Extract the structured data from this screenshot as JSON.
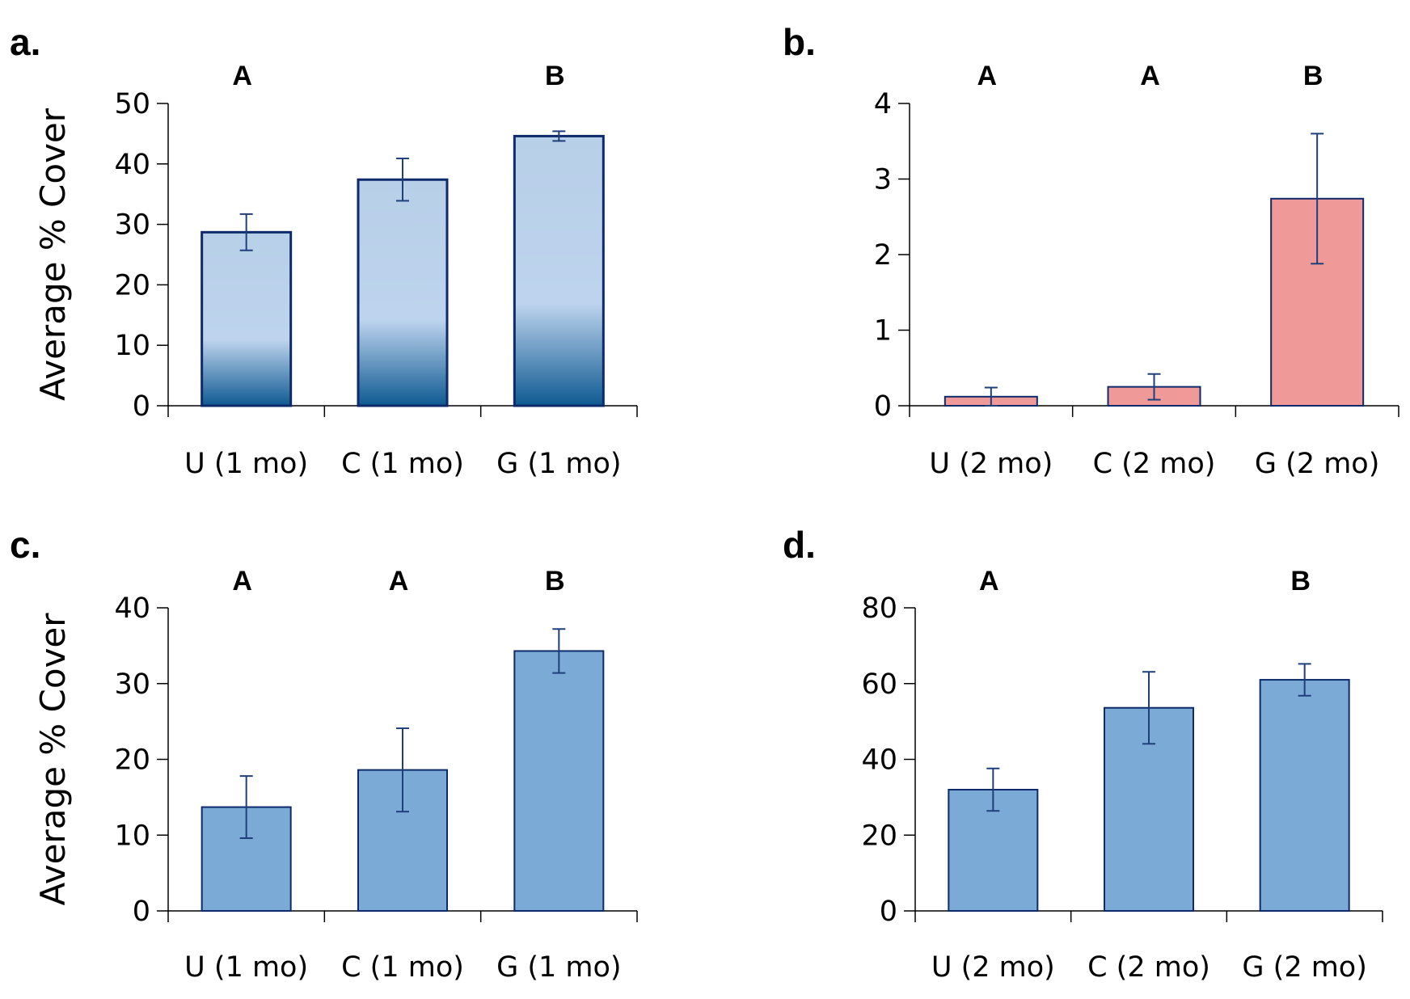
{
  "colors": {
    "gradient_top": "#b8cfe8",
    "gradient_mid": "#bed4ee",
    "gradient_bottom": "#0f5a92",
    "pink": "#ef9a98",
    "blue": "#7baad6",
    "edge": "#0d2a6b",
    "error": "#1f3f7a"
  },
  "chart_data": [
    {
      "id": "a",
      "panel_label": "a.",
      "type": "bar",
      "fill": "gradient",
      "ylabel": "Average % Cover",
      "categories": [
        "U (1 mo)",
        "C (1 mo)",
        "G (1 mo)"
      ],
      "values": [
        28.7,
        37.4,
        44.6
      ],
      "errors": [
        3.0,
        3.5,
        0.8
      ],
      "significance": [
        "A",
        "",
        "B"
      ],
      "ylim": [
        0,
        50
      ],
      "yticks": [
        "0",
        "10",
        "20",
        "30",
        "40",
        "50"
      ]
    },
    {
      "id": "b",
      "panel_label": "b.",
      "type": "bar",
      "fill": "pink",
      "ylabel": "",
      "categories": [
        "U (2 mo)",
        "C (2 mo)",
        "G (2 mo)"
      ],
      "values": [
        0.12,
        0.25,
        2.74
      ],
      "errors": [
        0.12,
        0.17,
        0.86
      ],
      "significance": [
        "A",
        "A",
        "B"
      ],
      "ylim": [
        0,
        4
      ],
      "yticks": [
        "0",
        "1",
        "2",
        "3",
        "4"
      ]
    },
    {
      "id": "c",
      "panel_label": "c.",
      "type": "bar",
      "fill": "blue",
      "ylabel": "Average % Cover",
      "categories": [
        "U (1 mo)",
        "C (1 mo)",
        "G (1 mo)"
      ],
      "values": [
        13.7,
        18.6,
        34.3
      ],
      "errors": [
        4.1,
        5.5,
        2.9
      ],
      "significance": [
        "A",
        "A",
        "B"
      ],
      "ylim": [
        0,
        40
      ],
      "yticks": [
        "0",
        "10",
        "20",
        "30",
        "40"
      ]
    },
    {
      "id": "d",
      "panel_label": "d.",
      "type": "bar",
      "fill": "blue",
      "ylabel": "",
      "categories": [
        "U (2 mo)",
        "C (2 mo)",
        "G (2 mo)"
      ],
      "values": [
        32.0,
        53.6,
        61.0
      ],
      "errors": [
        5.6,
        9.5,
        4.2
      ],
      "significance": [
        "A",
        "",
        "B"
      ],
      "ylim": [
        0,
        80
      ],
      "yticks": [
        "0",
        "20",
        "40",
        "60",
        "80"
      ]
    }
  ]
}
